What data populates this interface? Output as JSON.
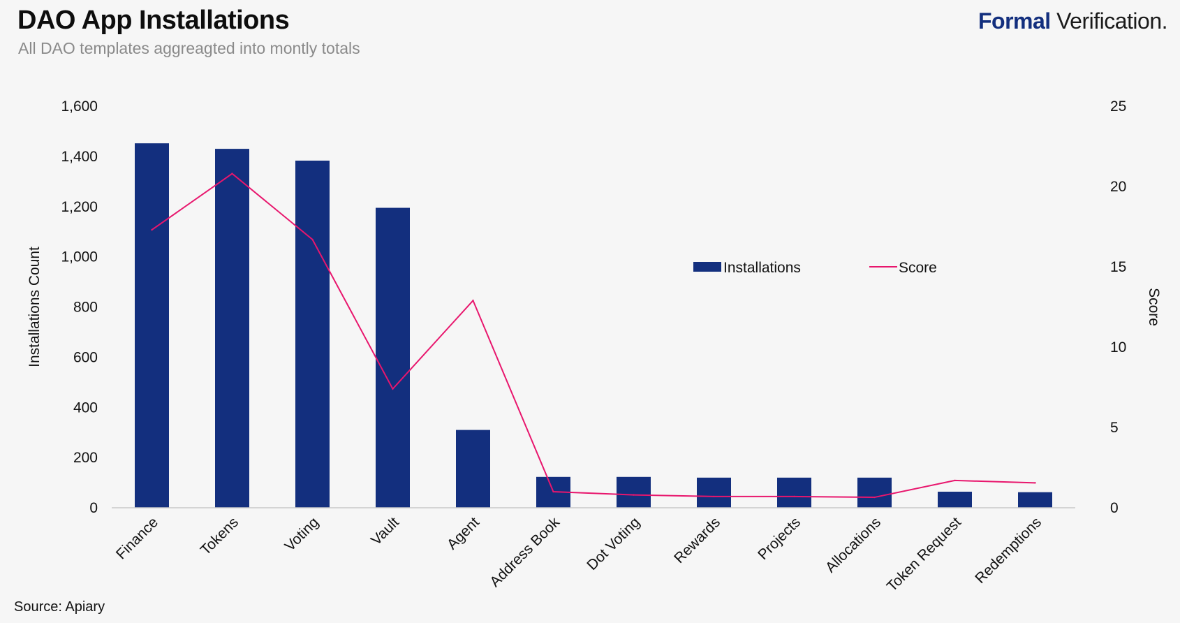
{
  "header": {
    "title": "DAO App Installations",
    "subtitle": "All DAO templates aggreagted into montly totals",
    "brand_bold": "Formal",
    "brand_rest": " Verification."
  },
  "footer": {
    "source": "Source: Apiary"
  },
  "colors": {
    "bar": "#132f7e",
    "line": "#e8166d",
    "brand": "#132f7e"
  },
  "chart_data": {
    "type": "bar",
    "categories": [
      "Finance",
      "Tokens",
      "Voting",
      "Vault",
      "Agent",
      "Address Book",
      "Dot Voting",
      "Rewards",
      "Projects",
      "Allocations",
      "Token Request",
      "Redemptions"
    ],
    "series": [
      {
        "name": "Installations",
        "type": "bar",
        "axis": "left",
        "values": [
          1452,
          1430,
          1383,
          1195,
          310,
          123,
          123,
          120,
          120,
          120,
          64,
          62
        ]
      },
      {
        "name": "Score",
        "type": "line",
        "axis": "right",
        "values": [
          17.3,
          20.8,
          16.7,
          7.4,
          12.9,
          1.0,
          0.8,
          0.7,
          0.7,
          0.65,
          1.7,
          1.55
        ]
      }
    ],
    "ylabel": "Installations Count",
    "y2label": "Score",
    "ylim": [
      0,
      1600
    ],
    "y2lim": [
      0,
      25
    ],
    "yticks": [
      "0",
      "200",
      "400",
      "600",
      "800",
      "1,000",
      "1,200",
      "1,400",
      "1,600"
    ],
    "y2ticks": [
      "0",
      "5",
      "10",
      "15",
      "20",
      "25"
    ],
    "legend_position": "center-right",
    "grid": false
  }
}
